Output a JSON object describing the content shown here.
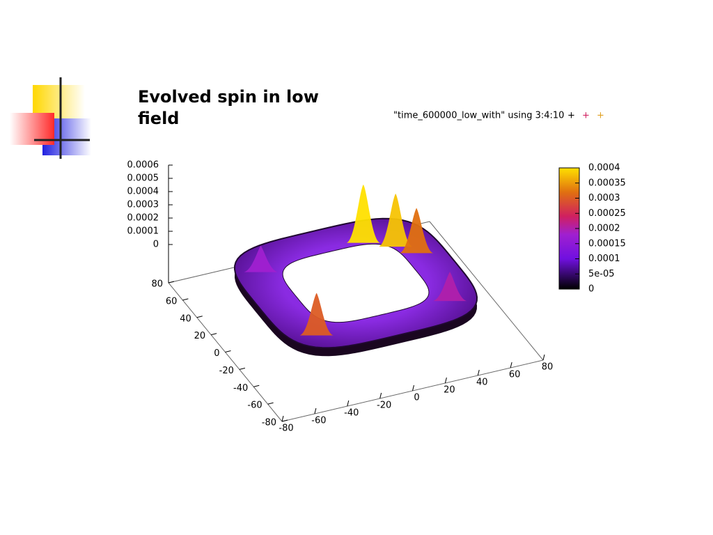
{
  "title": "Evolved spin in low field",
  "chart_data": {
    "type": "surface3d",
    "legend_label": "\"time_600000_low_with\" using 3:4:10",
    "xlim": [
      -80,
      80
    ],
    "xticks": [
      -80,
      -60,
      -40,
      -20,
      0,
      20,
      40,
      60,
      80
    ],
    "ylim": [
      -80,
      80
    ],
    "yticks": [
      -80,
      -60,
      -40,
      -20,
      0,
      20,
      40,
      60,
      80
    ],
    "zlim": [
      0,
      0.0006
    ],
    "zticks": [
      0,
      0.0001,
      0.0002,
      0.0003,
      0.0004,
      0.0005,
      0.0006
    ],
    "cblim": [
      0,
      0.0004
    ],
    "cbticks": [
      0,
      {
        "value": 5e-05,
        "label": "5e-05"
      },
      0.0001,
      0.00015,
      0.0002,
      0.00025,
      0.0003,
      0.00035,
      0.0004
    ],
    "peaks": {
      "x": [
        22,
        37,
        45,
        -41,
        42,
        -43
      ],
      "y": [
        40,
        29,
        18,
        -39,
        -36,
        35
      ],
      "z": [
        0.00042,
        0.00038,
        0.00032,
        0.0003,
        0.0002,
        0.00018
      ]
    }
  }
}
